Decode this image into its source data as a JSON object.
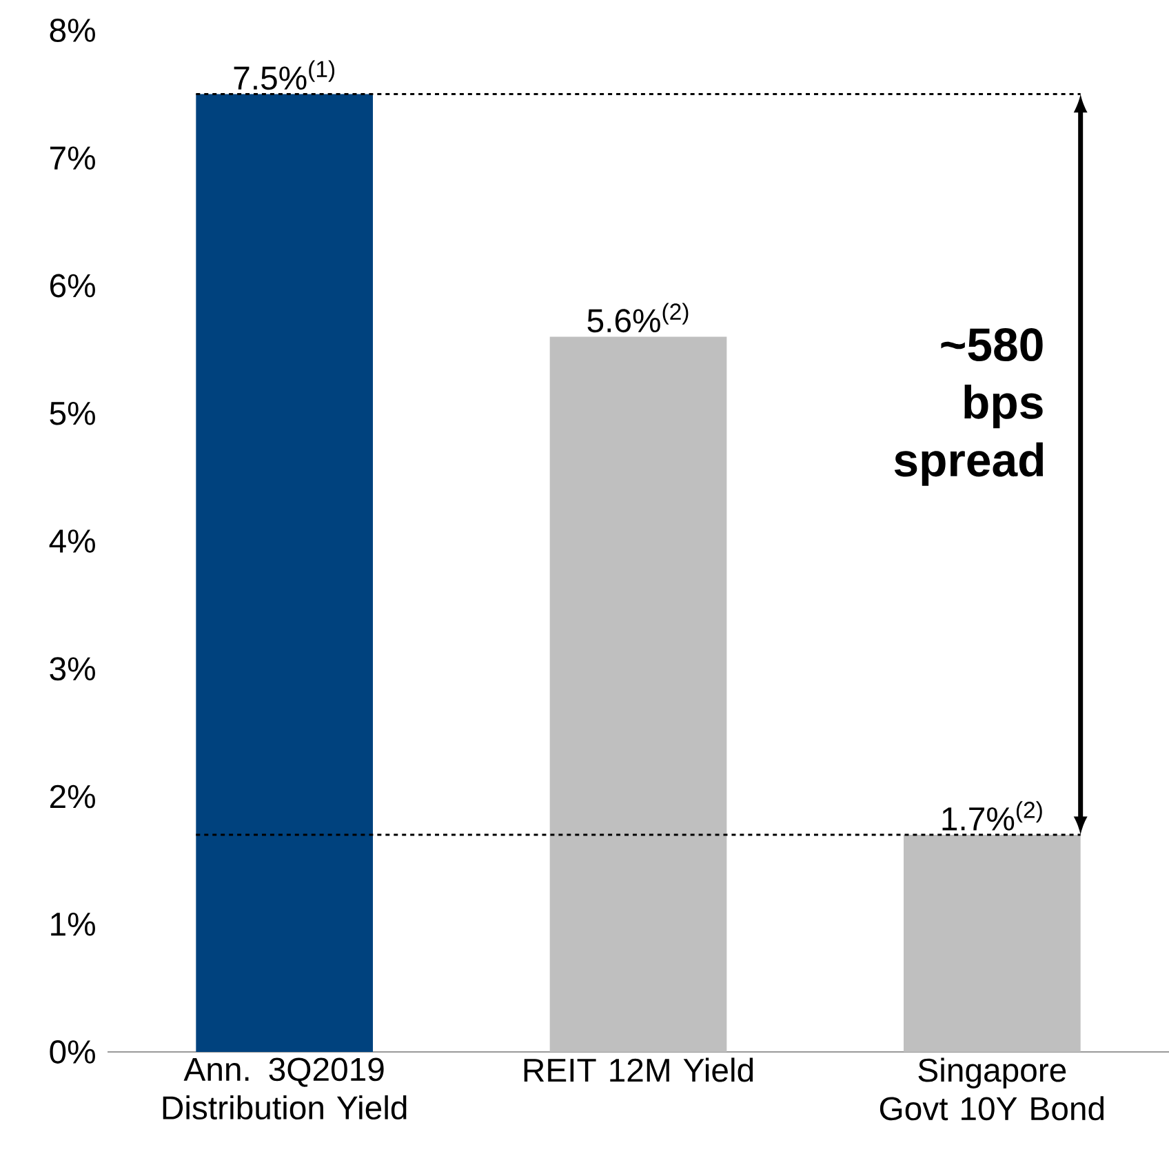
{
  "chart_data": {
    "type": "bar",
    "categories": [
      "Ann. 3Q2019 Distribution Yield",
      "REIT 12M Yield",
      "Singapore Govt 10Y Bond"
    ],
    "values": [
      7.5,
      5.6,
      1.7
    ],
    "colors": [
      "#00427e",
      "#bfbfbf",
      "#bfbfbf"
    ],
    "value_labels": [
      "7.5%$^{(1)}$",
      "5.6%$^{(2)}$",
      "1.7%$^{(2)}$"
    ],
    "ylim": [
      0,
      8
    ],
    "yticks": [
      {
        "value": 0,
        "label": "0%"
      },
      {
        "value": 1,
        "label": "1%"
      },
      {
        "value": 2,
        "label": "2%"
      },
      {
        "value": 3,
        "label": "3%"
      },
      {
        "value": 4,
        "label": "4%"
      },
      {
        "value": 5,
        "label": "5%"
      },
      {
        "value": 6,
        "label": "6%"
      },
      {
        "value": 7,
        "label": "7%"
      },
      {
        "value": 8,
        "label": "8%"
      }
    ],
    "ref_lines": [
      {
        "axis": "y",
        "value": 7.5,
        "line_style": "dashed"
      },
      {
        "axis": "y",
        "value": 1.7,
        "line_style": "dashed"
      }
    ],
    "annotations": [
      "~580 bps spread"
    ],
    "grid": false
  }
}
